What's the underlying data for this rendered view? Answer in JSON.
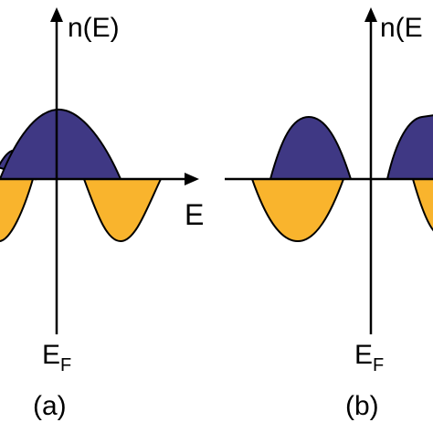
{
  "colors": {
    "upper_lobe": "#3F3884",
    "lower_lobe": "#F9B42D",
    "outline": "#000000",
    "background": "#ffffff"
  },
  "panels": [
    {
      "panel_label": "(a)",
      "y_axis_label": "n(E)",
      "x_axis_label": "E",
      "fermi_label_main": "E",
      "fermi_label_sub": "F"
    },
    {
      "panel_label": "(b)",
      "y_axis_label": "n(E",
      "fermi_label_main": "E",
      "fermi_label_sub": "F"
    }
  ]
}
